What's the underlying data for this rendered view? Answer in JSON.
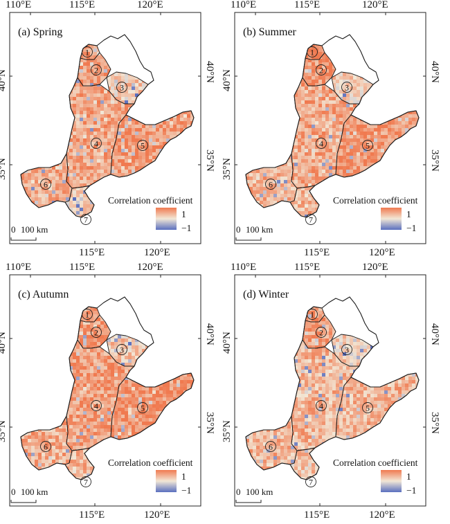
{
  "colors": {
    "positive": "#f07a50",
    "mid": "#f2e7d6",
    "negative": "#5a6fbf",
    "boundary": "#1a1a1a",
    "frame": "#222222"
  },
  "axis_labels": {
    "lon_top": [
      "110°E",
      "115°E",
      "120°E"
    ],
    "lon_bottom": [
      "115°E",
      "120°E"
    ],
    "lat": [
      "40°N",
      "35°N"
    ]
  },
  "legend": {
    "title": "Correlation coefficient",
    "max_label": "1",
    "min_label": "−1"
  },
  "scale_bar": {
    "zero": "0",
    "distance": "100 km"
  },
  "regions": [
    "1",
    "2",
    "3",
    "4",
    "5",
    "6",
    "7"
  ],
  "panels": [
    {
      "id": "spring",
      "title": "(a) Spring",
      "region_mean": [
        0.75,
        0.7,
        0.25,
        0.6,
        0.7,
        0.55,
        0.15
      ]
    },
    {
      "id": "summer",
      "title": "(b) Summer",
      "region_mean": [
        0.8,
        0.75,
        0.2,
        0.55,
        0.75,
        0.5,
        0.45
      ]
    },
    {
      "id": "autumn",
      "title": "(c) Autumn",
      "region_mean": [
        0.75,
        0.75,
        0.3,
        0.65,
        0.8,
        0.5,
        0.45
      ]
    },
    {
      "id": "winter",
      "title": "(d) Winter",
      "region_mean": [
        0.65,
        0.6,
        0.2,
        0.45,
        0.45,
        0.45,
        0.3
      ]
    }
  ]
}
